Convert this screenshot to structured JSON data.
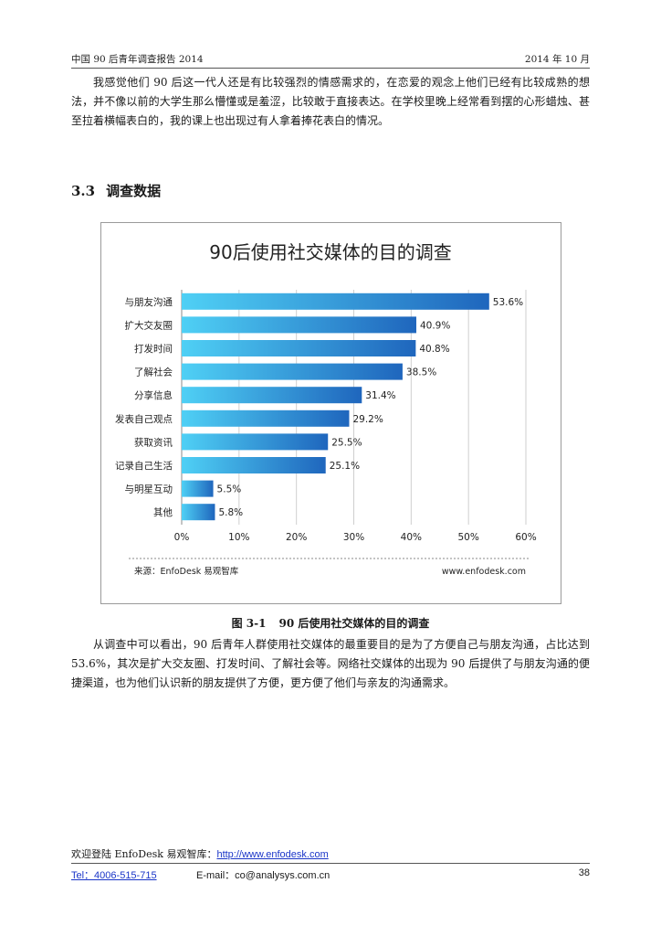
{
  "header": {
    "left": "中国 90 后青年调查报告 2014",
    "right": "2014 年 10 月"
  },
  "intro_paragraph": "我感觉他们 90 后这一代人还是有比较强烈的情感需求的，在恋爱的观念上他们已经有比较成熟的想法，并不像以前的大学生那么懵懂或是羞涩，比较敢于直接表达。在学校里晚上经常看到摆的心形蜡烛、甚至拉着横幅表白的，我的课上也出现过有人拿着捧花表白的情况。",
  "section": {
    "number": "3.3",
    "title": "调查数据"
  },
  "chart_data": {
    "type": "bar",
    "orientation": "horizontal",
    "title": "90后使用社交媒体的目的调查",
    "categories": [
      "与朋友沟通",
      "扩大交友圈",
      "打发时间",
      "了解社会",
      "分享信息",
      "发表自己观点",
      "获取资讯",
      "记录自己生活",
      "与明星互动",
      "其他"
    ],
    "values": [
      53.6,
      40.9,
      40.8,
      38.5,
      31.4,
      29.2,
      25.5,
      25.1,
      5.5,
      5.8
    ],
    "value_labels": [
      "53.6%",
      "40.9%",
      "40.8%",
      "38.5%",
      "31.4%",
      "29.2%",
      "25.5%",
      "25.1%",
      "5.5%",
      "5.8%"
    ],
    "xlim": [
      0,
      60
    ],
    "x_ticks": [
      "0%",
      "10%",
      "20%",
      "30%",
      "40%",
      "50%",
      "60%"
    ],
    "grid": true,
    "bar_colors": [
      "#4fd0f5",
      "#1f66bd"
    ],
    "source": "来源：EnfoDesk 易观智库",
    "site": "www.enfodesk.com"
  },
  "caption": {
    "number": "图 3-1",
    "text": "90 后使用社交媒体的目的调查"
  },
  "analysis_paragraph": "从调查中可以看出，90 后青年人群使用社交媒体的最重要目的是为了方便自己与朋友沟通，占比达到 53.6%，其次是扩大交友圈、打发时间、了解社会等。网络社交媒体的出现为 90 后提供了与朋友沟通的便捷渠道，也为他们认识新的朋友提供了方便，更方便了他们与亲友的沟通需求。",
  "footer": {
    "welcome": "欢迎登陆 EnfoDesk 易观智库：",
    "url": "http://www.enfodesk.com",
    "tel": "Tel：4006-515-715",
    "email_label": "E-mail：",
    "email": "co@analysys.com.cn",
    "page": "38"
  }
}
